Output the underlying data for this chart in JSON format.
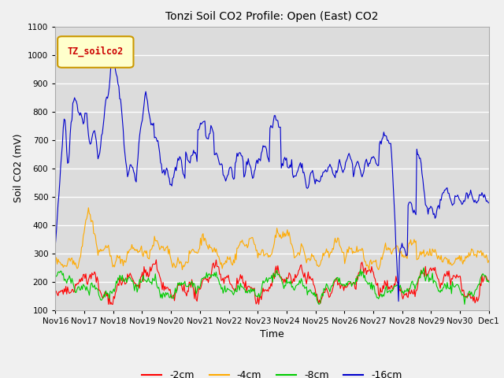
{
  "title": "Tonzi Soil CO2 Profile: Open (East) CO2",
  "ylabel": "Soil CO2 (mV)",
  "xlabel": "Time",
  "ylim": [
    100,
    1100
  ],
  "yticks": [
    100,
    200,
    300,
    400,
    500,
    600,
    700,
    800,
    900,
    1000,
    1100
  ],
  "bg_color": "#dcdcdc",
  "fig_color": "#f0f0f0",
  "grid_color": "#ffffff",
  "legend_label": "TZ_soilco2",
  "legend_box_color": "#ffffcc",
  "legend_box_edge": "#cc9900",
  "legend_text_color": "#cc0000",
  "lines": [
    {
      "label": "-2cm",
      "color": "#ff0000"
    },
    {
      "label": "-4cm",
      "color": "#ffaa00"
    },
    {
      "label": "-8cm",
      "color": "#00cc00"
    },
    {
      "label": "-16cm",
      "color": "#0000cc"
    }
  ],
  "xticklabels": [
    "Nov 16",
    "Nov 17",
    "Nov 18",
    "Nov 19",
    "Nov 20",
    "Nov 21",
    "Nov 22",
    "Nov 23",
    "Nov 24",
    "Nov 25",
    "Nov 26",
    "Nov 27",
    "Nov 28",
    "Nov 29",
    "Nov 30",
    "Dec 1"
  ],
  "num_points": 500
}
